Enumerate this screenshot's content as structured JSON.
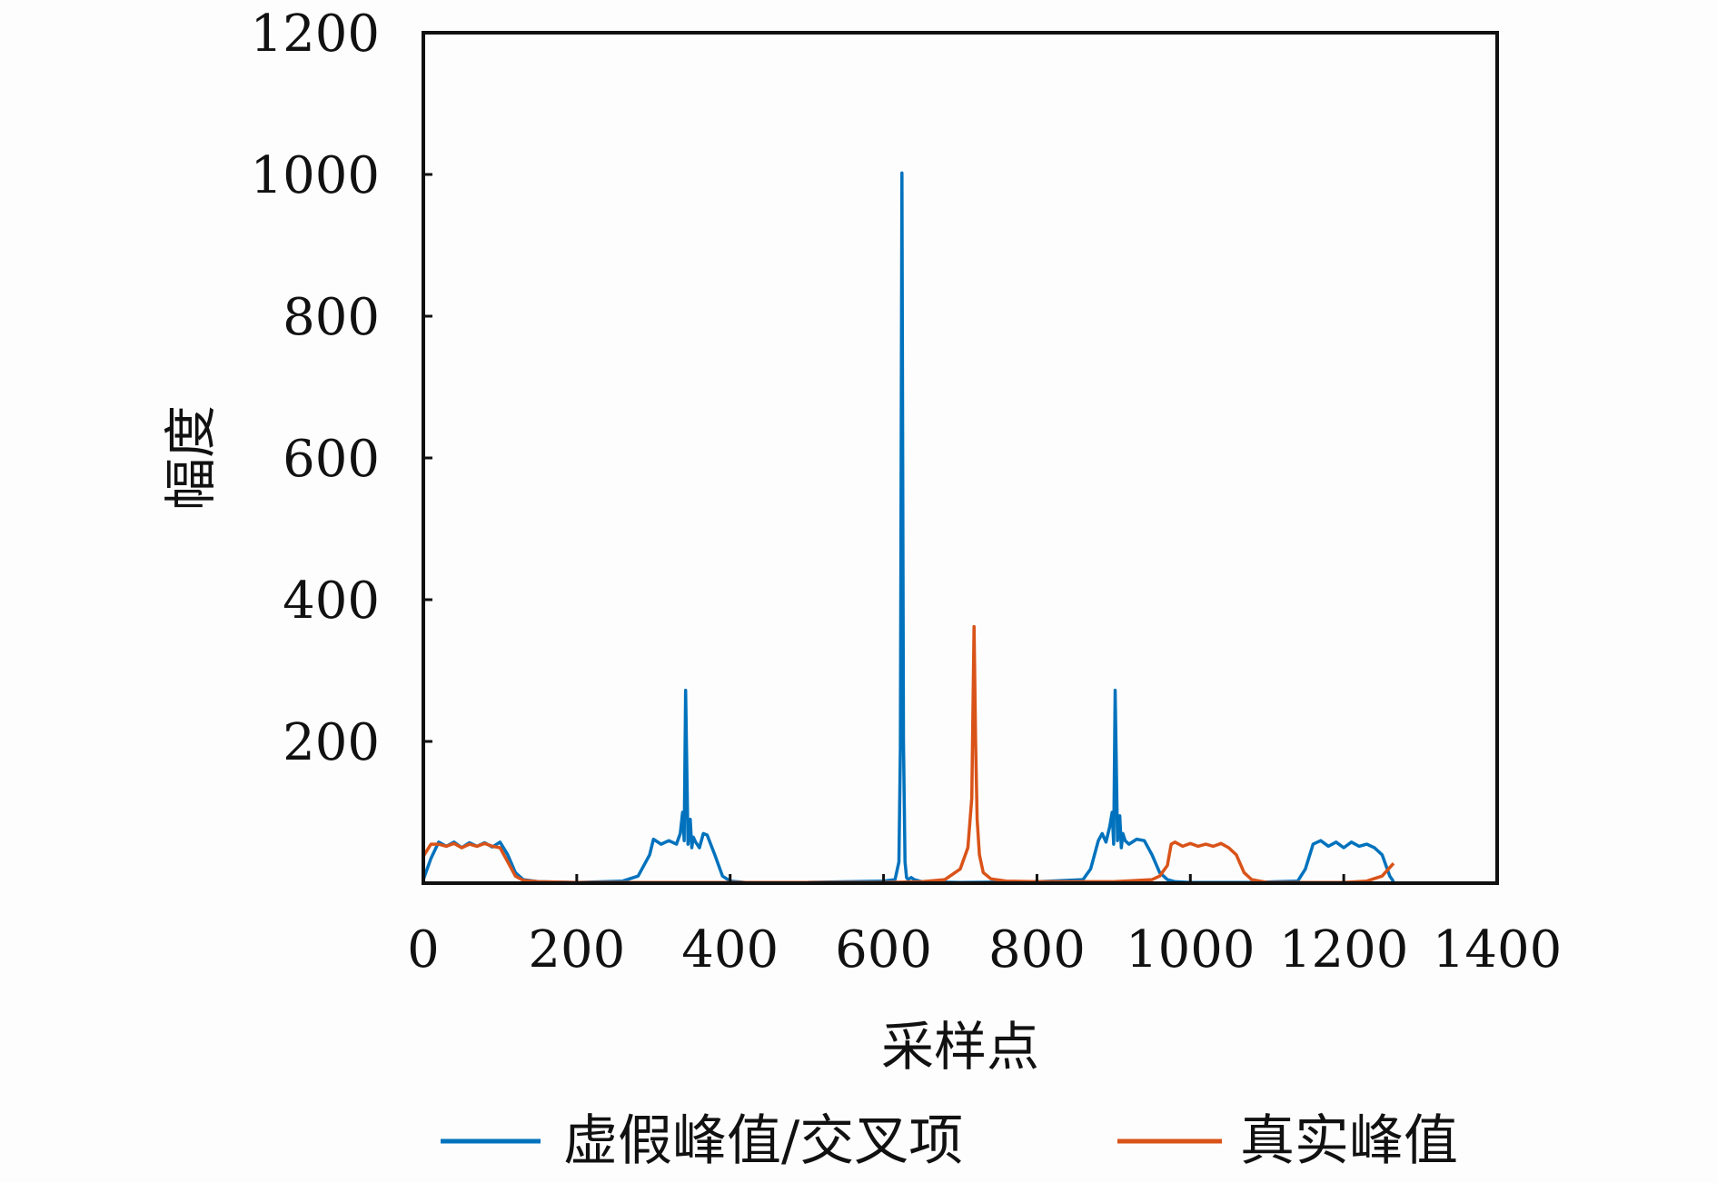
{
  "chart_data": {
    "type": "line",
    "title": "",
    "xlabel": "采样点",
    "ylabel": "幅度",
    "xlim": [
      0,
      1400
    ],
    "ylim": [
      0,
      1200
    ],
    "xticks": [
      0,
      200,
      400,
      600,
      800,
      1000,
      1200,
      1400
    ],
    "yticks": [
      200,
      400,
      600,
      800,
      1000,
      1200
    ],
    "legend_position": "bottom",
    "grid": false,
    "series": [
      {
        "name": "虚假峰值/交叉项",
        "color": "#0072bd",
        "x": [
          0,
          10,
          20,
          30,
          40,
          50,
          60,
          70,
          80,
          90,
          100,
          110,
          120,
          130,
          150,
          200,
          260,
          280,
          295,
          300,
          310,
          320,
          330,
          335,
          338,
          340,
          342,
          345,
          348,
          350,
          352,
          355,
          360,
          365,
          370,
          380,
          390,
          400,
          420,
          500,
          600,
          615,
          620,
          622,
          624,
          626,
          628,
          630,
          632,
          636,
          640,
          650,
          700,
          800,
          860,
          870,
          880,
          885,
          890,
          895,
          898,
          900,
          902,
          905,
          908,
          910,
          912,
          915,
          920,
          930,
          940,
          950,
          960,
          970,
          980,
          1000,
          1080,
          1140,
          1150,
          1160,
          1170,
          1180,
          1190,
          1200,
          1210,
          1220,
          1230,
          1240,
          1250,
          1260,
          1265
        ],
        "values": [
          5,
          35,
          58,
          52,
          58,
          50,
          57,
          52,
          57,
          51,
          58,
          40,
          15,
          5,
          2,
          1,
          3,
          10,
          40,
          62,
          55,
          60,
          55,
          70,
          100,
          60,
          272,
          55,
          90,
          50,
          65,
          58,
          50,
          70,
          68,
          40,
          10,
          3,
          1,
          1,
          3,
          5,
          30,
          190,
          1002,
          200,
          30,
          8,
          5,
          8,
          5,
          2,
          1,
          2,
          5,
          20,
          60,
          70,
          58,
          80,
          100,
          55,
          272,
          60,
          95,
          50,
          70,
          60,
          55,
          62,
          60,
          40,
          15,
          5,
          2,
          1,
          1,
          3,
          20,
          55,
          60,
          52,
          58,
          50,
          58,
          52,
          55,
          50,
          40,
          10,
          2
        ]
      },
      {
        "name": "真实峰值",
        "color": "#d95319",
        "x": [
          0,
          10,
          20,
          30,
          40,
          50,
          60,
          70,
          80,
          90,
          100,
          110,
          120,
          130,
          150,
          200,
          300,
          400,
          500,
          600,
          650,
          680,
          700,
          710,
          715,
          718,
          720,
          722,
          725,
          730,
          740,
          760,
          800,
          900,
          950,
          960,
          970,
          975,
          980,
          990,
          1000,
          1010,
          1020,
          1030,
          1040,
          1050,
          1060,
          1070,
          1080,
          1100,
          1150,
          1200,
          1230,
          1250,
          1260,
          1265
        ],
        "values": [
          38,
          55,
          55,
          52,
          56,
          50,
          55,
          52,
          56,
          52,
          50,
          30,
          10,
          4,
          2,
          1,
          1,
          1,
          1,
          1,
          2,
          5,
          20,
          50,
          120,
          362,
          200,
          90,
          40,
          15,
          6,
          3,
          2,
          2,
          5,
          10,
          25,
          55,
          58,
          52,
          56,
          52,
          55,
          52,
          56,
          50,
          40,
          15,
          5,
          1,
          1,
          1,
          3,
          10,
          22,
          28
        ]
      }
    ]
  }
}
